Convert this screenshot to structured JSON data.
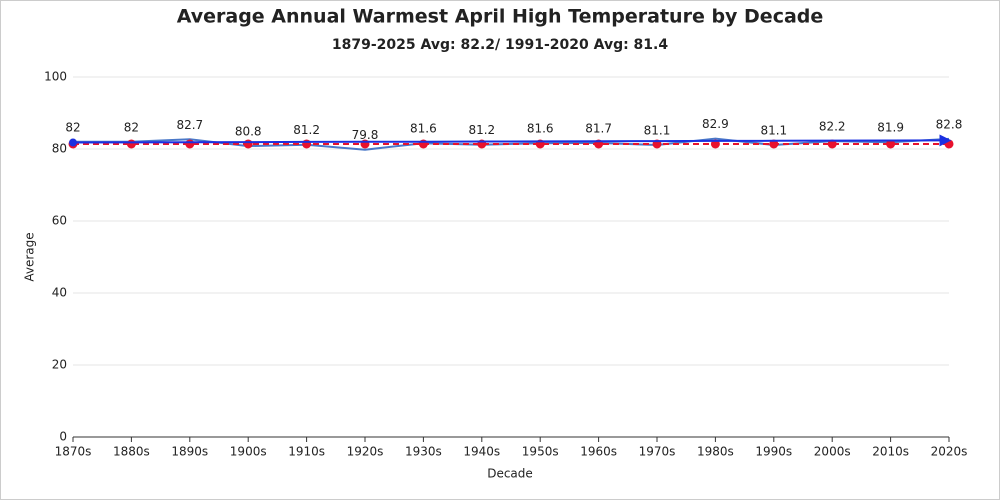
{
  "chart_data": {
    "type": "line",
    "title": "Average Annual Warmest April High Temperature by Decade",
    "subtitle": "1879-2025 Avg: 82.2/ 1991-2020 Avg: 81.4",
    "x_label": "Decade",
    "y_label": "Average",
    "categories": [
      "1870s",
      "1880s",
      "1890s",
      "1900s",
      "1910s",
      "1920s",
      "1930s",
      "1940s",
      "1950s",
      "1960s",
      "1970s",
      "1980s",
      "1990s",
      "2000s",
      "2010s",
      "2020s"
    ],
    "series": [
      {
        "color": "#4a78c8",
        "style": "solid",
        "labels": true,
        "values": [
          82,
          82,
          82.7,
          80.8,
          81.2,
          79.8,
          81.6,
          81.2,
          81.6,
          81.7,
          81.1,
          82.9,
          81.1,
          82.2,
          81.9,
          82.8
        ]
      },
      {
        "color": "#e8112d",
        "style": "dashed",
        "markers": true,
        "values": [
          81.4,
          81.4,
          81.4,
          81.4,
          81.4,
          81.4,
          81.4,
          81.4,
          81.4,
          81.4,
          81.4,
          81.4,
          81.4,
          81.4,
          81.4,
          81.4
        ]
      },
      {
        "color": "#1a2fe0",
        "style": "trend",
        "values": [
          81.8,
          81.84,
          81.88,
          81.92,
          81.96,
          82,
          82.04,
          82.08,
          82.12,
          82.16,
          82.2,
          82.24,
          82.28,
          82.32,
          82.36,
          82.4
        ]
      }
    ],
    "ylim": [
      0,
      100
    ],
    "yticks": [
      0,
      20,
      40,
      60,
      80,
      100
    ],
    "grid": true
  }
}
